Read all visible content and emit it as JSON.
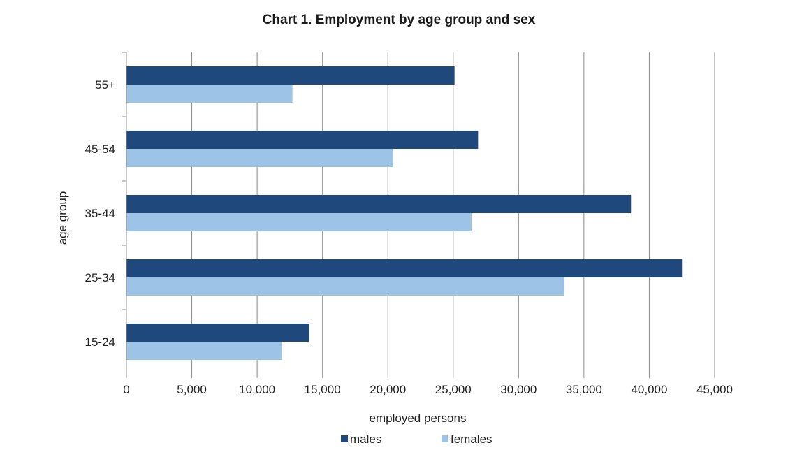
{
  "chart_data": {
    "type": "bar",
    "orientation": "horizontal",
    "title": "Chart 1.  Employment by age group and sex",
    "xlabel": "employed persons",
    "ylabel": "age group",
    "categories": [
      "15-24",
      "25-34",
      "35-44",
      "45-54",
      "55+"
    ],
    "series": [
      {
        "name": "males",
        "color": "#1f497d",
        "values": [
          14000,
          42500,
          38600,
          26900,
          25100
        ]
      },
      {
        "name": "females",
        "color": "#9dc3e6",
        "values": [
          11900,
          33500,
          26400,
          20400,
          12700
        ]
      }
    ],
    "xlim": [
      0,
      45000
    ],
    "xticks": [
      0,
      5000,
      10000,
      15000,
      20000,
      25000,
      30000,
      35000,
      40000,
      45000
    ],
    "xtick_labels": [
      "0",
      "5,000",
      "10,000",
      "15,000",
      "20,000",
      "25,000",
      "30,000",
      "35,000",
      "40,000",
      "45,000"
    ],
    "grid": true,
    "legend_position": "bottom"
  }
}
